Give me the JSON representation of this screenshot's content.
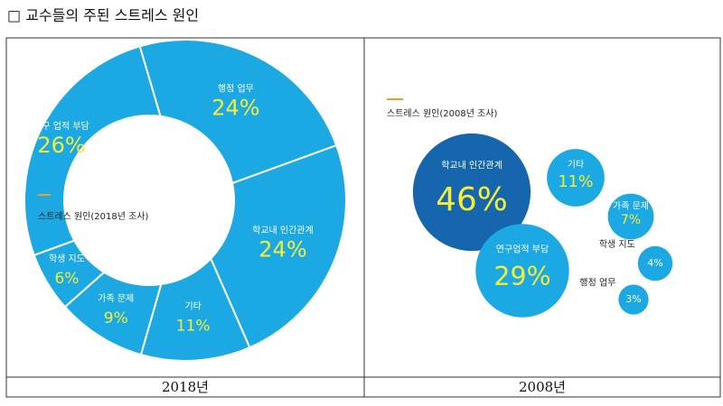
{
  "title": "□ 교수들의 주된 스트레스 원인",
  "chart_data": [
    {
      "type": "donut",
      "legend_title": "스트레스 원인(2018년 조사)",
      "caption": "2018년",
      "categories": [
        "연구 업적 부담",
        "행정 업무",
        "학교내 인간관계",
        "기타",
        "가족 문제",
        "학생 지도"
      ],
      "values": [
        26,
        24,
        24,
        11,
        9,
        6
      ],
      "value_labels": [
        "26%",
        "24%",
        "24%",
        "11%",
        "9%",
        "6%"
      ],
      "color": "#1ba8e3",
      "value_label_color": "#f4ee3a",
      "legend_marker_color": "#f0a020"
    },
    {
      "type": "bubble",
      "legend_title": "스트레스 원인(2008년 조사)",
      "caption": "2008년",
      "categories": [
        "학교내 인간관계",
        "연구업적 부담",
        "기타",
        "가족 문제",
        "학생 지도",
        "행정 업무"
      ],
      "values": [
        46,
        29,
        11,
        7,
        4,
        3
      ],
      "value_labels": [
        "46%",
        "29%",
        "11%",
        "7%",
        "4%",
        "3%"
      ],
      "colors": [
        "#1566ad",
        "#1ba8e3",
        "#1ba8e3",
        "#1ba8e3",
        "#1ba8e3",
        "#1ba8e3"
      ],
      "value_label_color": "#f4ee3a",
      "legend_marker_color": "#f0a020"
    }
  ]
}
